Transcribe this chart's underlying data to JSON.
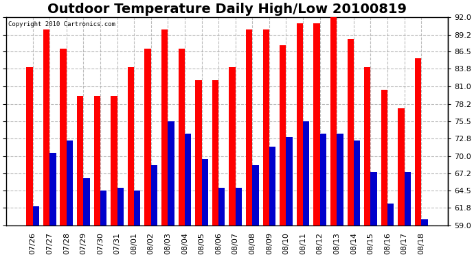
{
  "title": "Outdoor Temperature Daily High/Low 20100819",
  "copyright_text": "Copyright 2010 Cartronics.com",
  "dates": [
    "07/26",
    "07/27",
    "07/28",
    "07/29",
    "07/30",
    "07/31",
    "08/01",
    "08/02",
    "08/03",
    "08/04",
    "08/05",
    "08/06",
    "08/07",
    "08/08",
    "08/09",
    "08/10",
    "08/11",
    "08/12",
    "08/13",
    "08/14",
    "08/15",
    "08/16",
    "08/17",
    "08/18"
  ],
  "highs": [
    84,
    90,
    87,
    79.5,
    79.5,
    79.5,
    84,
    87,
    90,
    87,
    82,
    82,
    84,
    90,
    90,
    87.5,
    91,
    91,
    92,
    88.5,
    84,
    80.5,
    77.5,
    85.5
  ],
  "lows": [
    62,
    70.5,
    72.5,
    66.5,
    64.5,
    65,
    64.5,
    68.5,
    75.5,
    73.5,
    69.5,
    65,
    65,
    68.5,
    71.5,
    73,
    75.5,
    73.5,
    73.5,
    72.5,
    67.5,
    62.5,
    67.5,
    60
  ],
  "high_color": "#ff0000",
  "low_color": "#0000cc",
  "background_color": "#ffffff",
  "plot_bg_color": "#ffffff",
  "grid_color": "#aaaaaa",
  "ylabel_right": [
    "59.0",
    "61.8",
    "64.5",
    "67.2",
    "70.0",
    "72.8",
    "75.5",
    "78.2",
    "81.0",
    "83.8",
    "86.5",
    "89.2",
    "92.0"
  ],
  "ymin": 59.0,
  "ymax": 92.0,
  "title_fontsize": 14,
  "tick_fontsize": 8,
  "bar_width": 0.38
}
